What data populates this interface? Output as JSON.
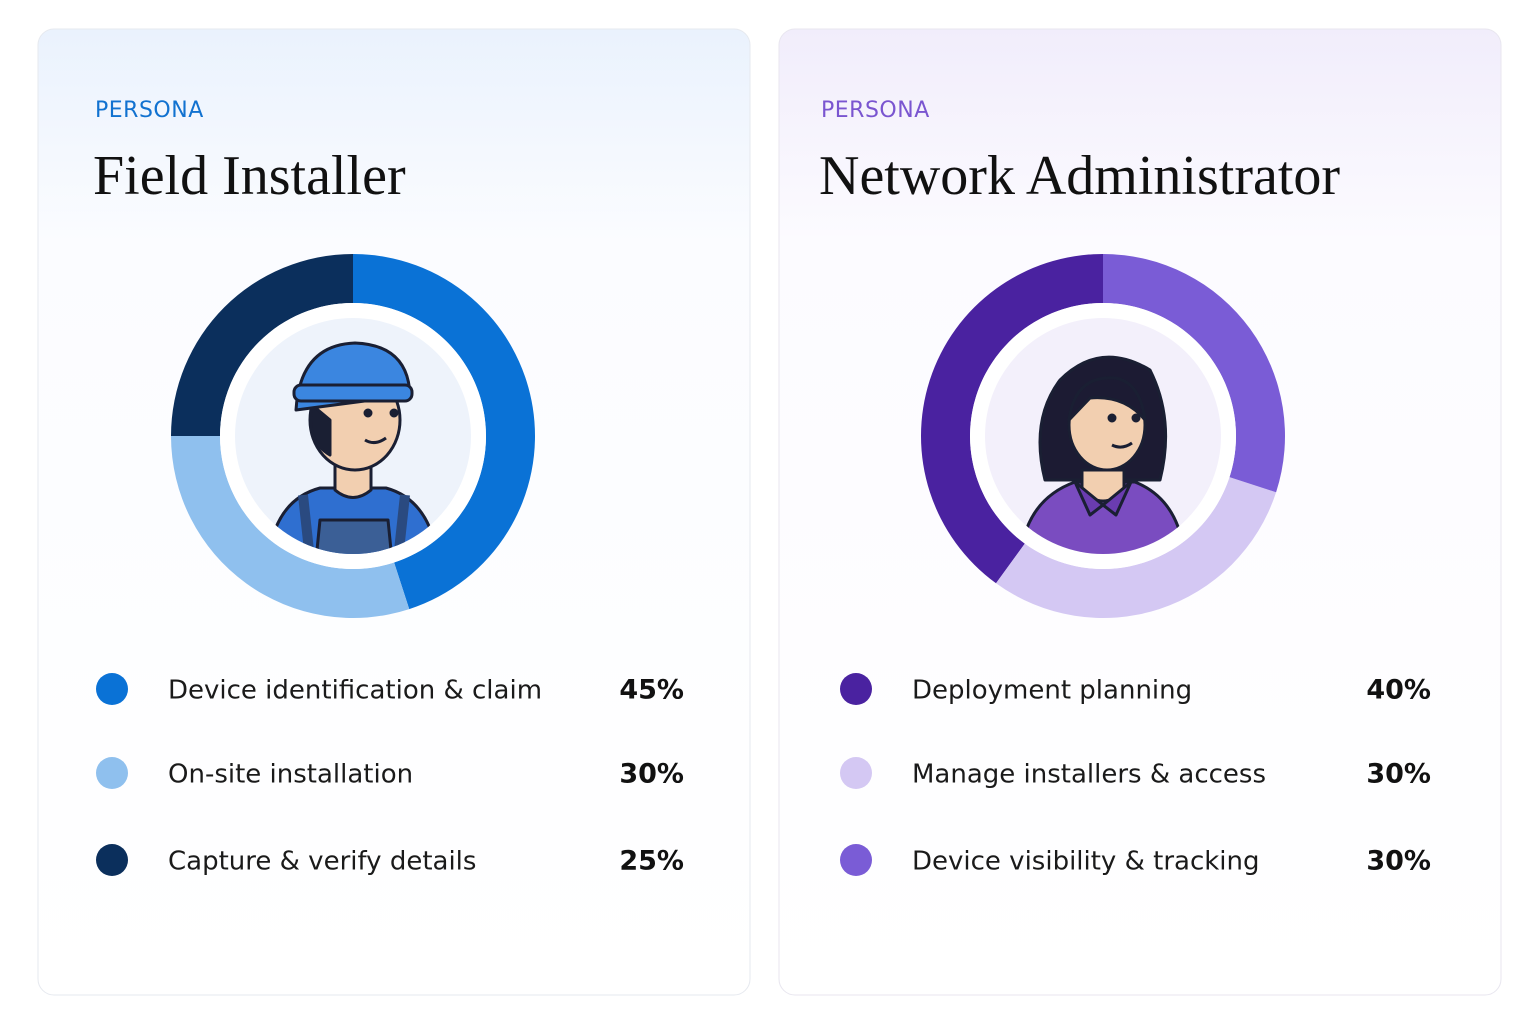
{
  "chart_data": [
    {
      "type": "pie",
      "eyebrow": "PERSONA",
      "title": "Field Installer",
      "direction": "clockwise",
      "categories": [
        "Device identification & claim",
        "On-site installation",
        "Capture & verify details"
      ],
      "values": [
        45,
        30,
        25
      ],
      "value_labels": [
        "45%",
        "30%",
        "25%"
      ],
      "colors": [
        "#0a72d6",
        "#8fc0ee",
        "#0b2f5c"
      ]
    },
    {
      "type": "pie",
      "eyebrow": "PERSONA",
      "title": "Network Administrator",
      "direction": "counterclockwise",
      "categories": [
        "Deployment planning",
        "Manage installers & access",
        "Device visibility & tracking"
      ],
      "values": [
        40,
        30,
        30
      ],
      "value_labels": [
        "40%",
        "30%",
        "30%"
      ],
      "colors": [
        "#4a22a0",
        "#d4c8f3",
        "#7a5cd6"
      ]
    }
  ]
}
